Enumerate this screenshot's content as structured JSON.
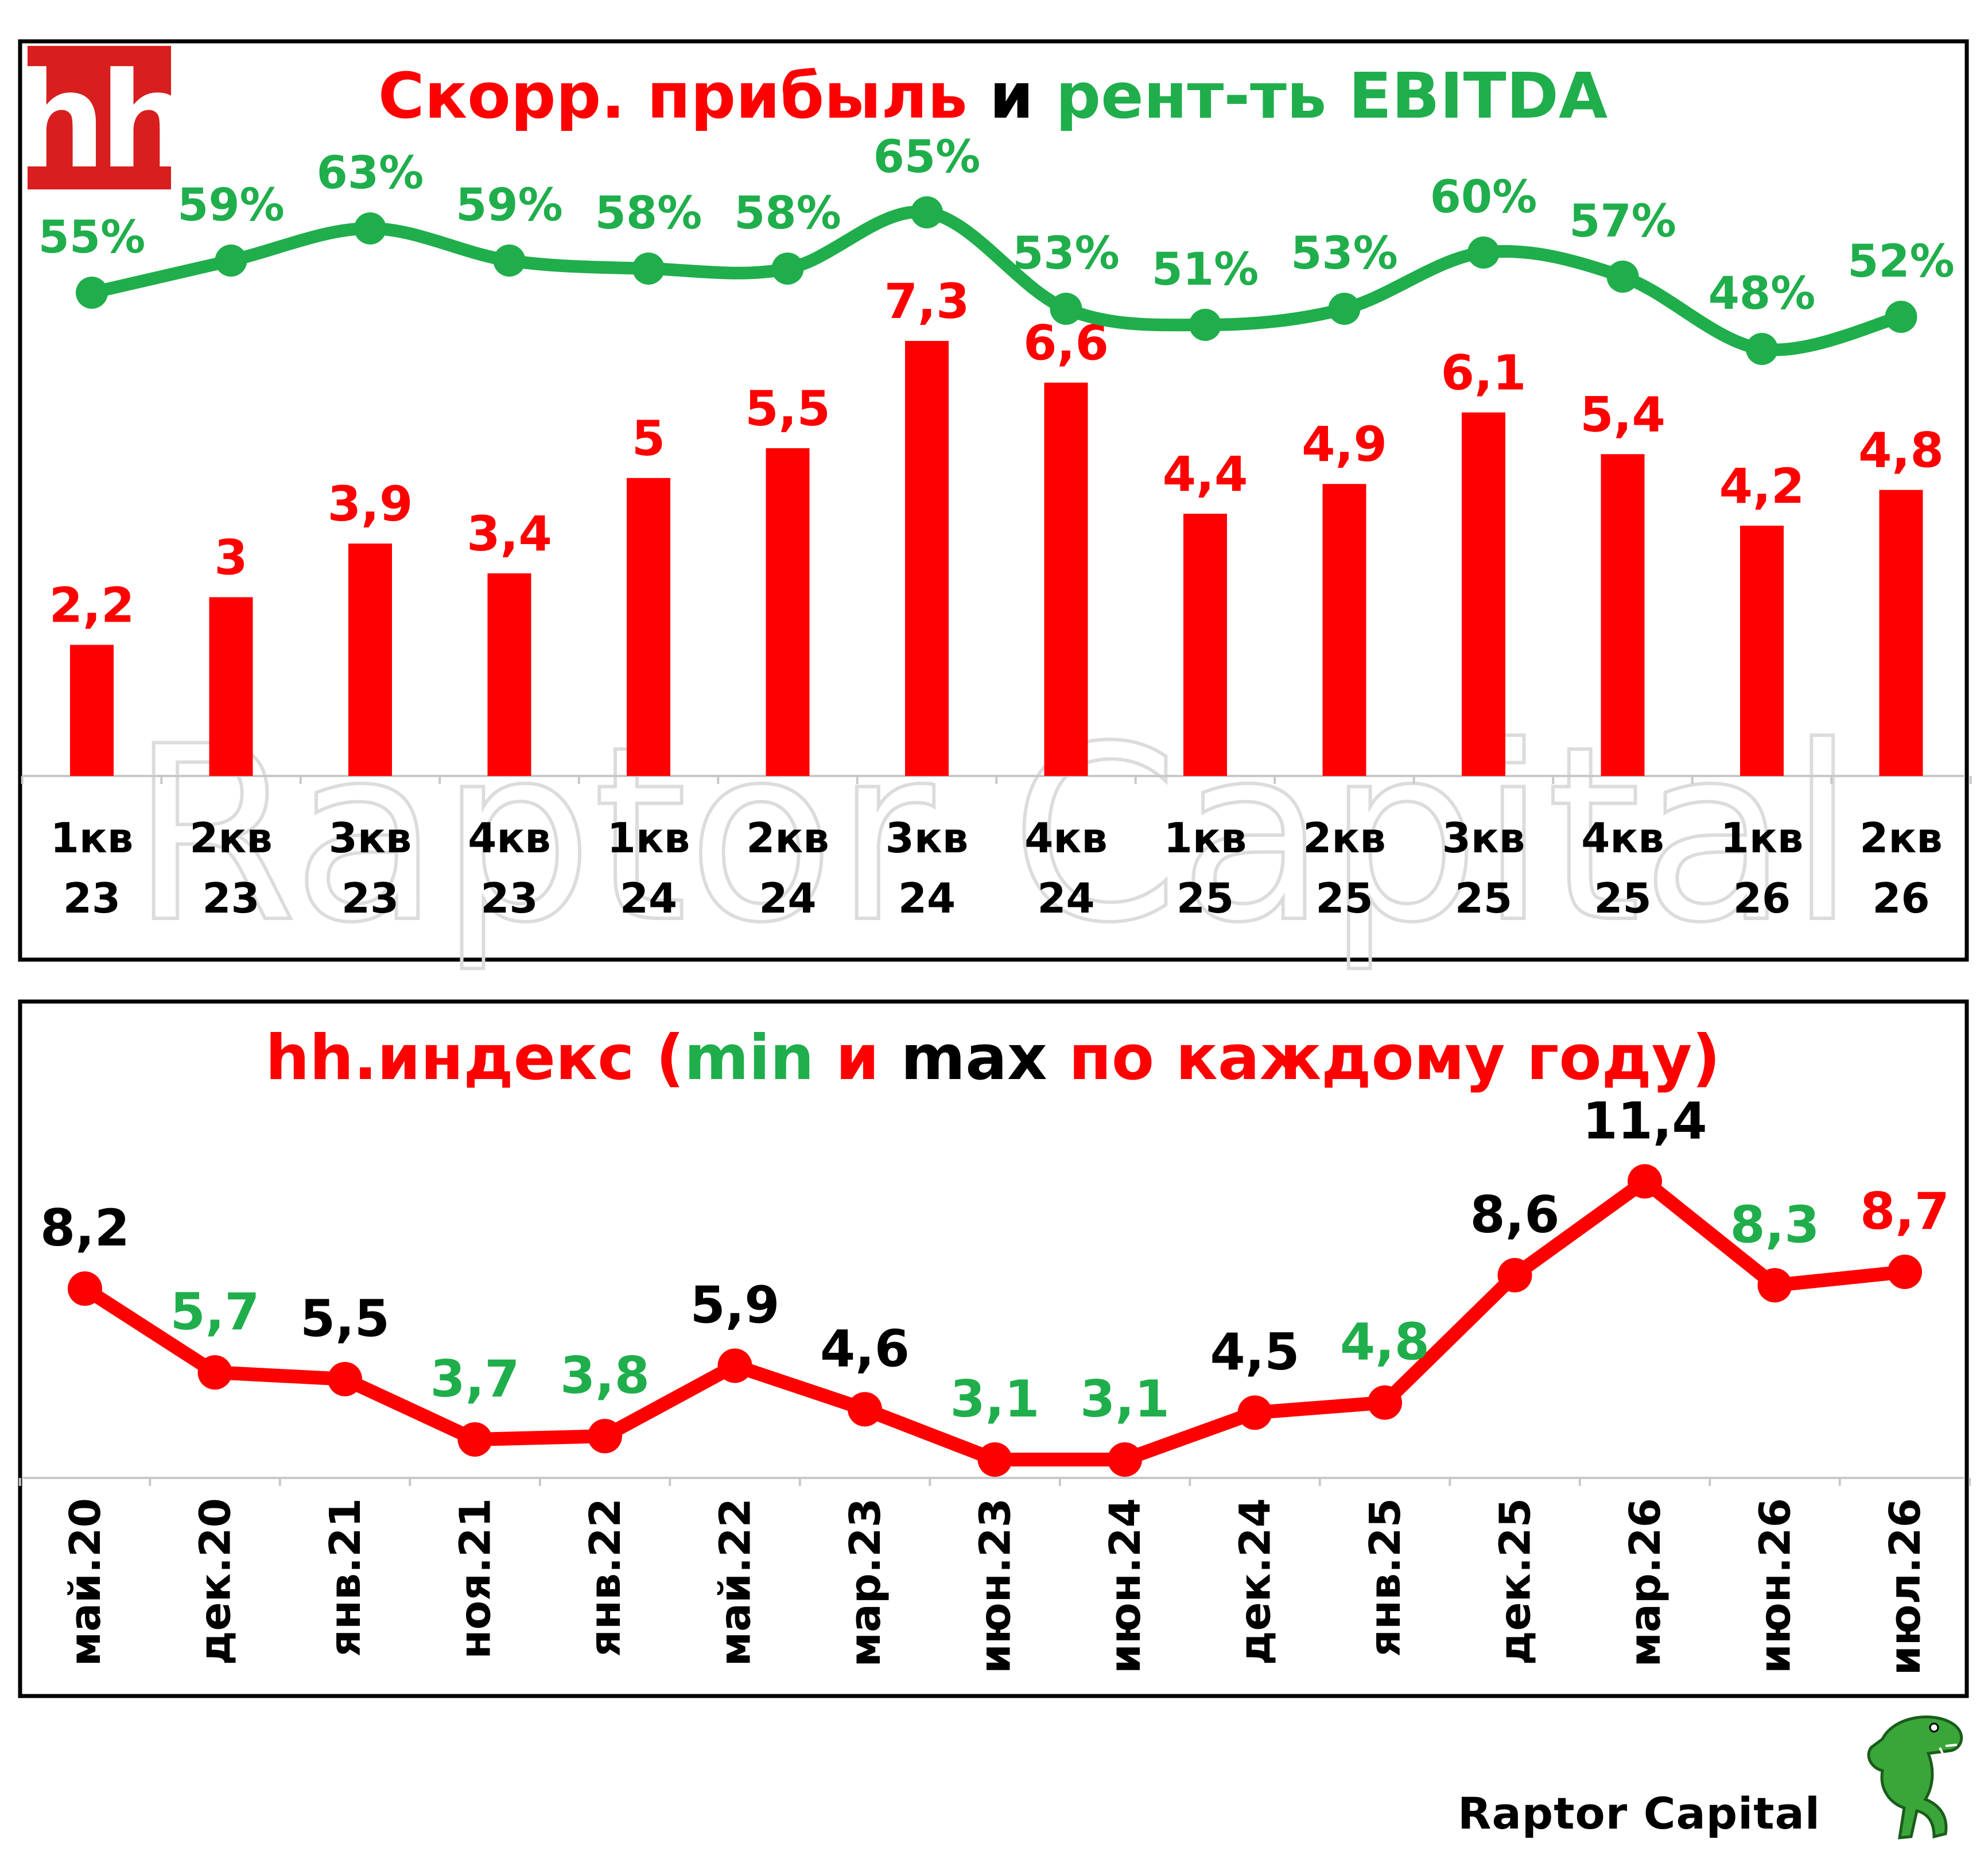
{
  "logo_text": "hh",
  "watermark": "Raptor Capital",
  "footer": {
    "brand": "Raptor Capital"
  },
  "colors": {
    "red": "#ff0000",
    "green": "#1fae4b",
    "black": "#000000"
  },
  "chart1": {
    "title_parts": [
      {
        "text": "Скорр. прибыль",
        "color": "red"
      },
      {
        "text": " и ",
        "color": "black"
      },
      {
        "text": "рент-ть EBITDA",
        "color": "green"
      }
    ]
  },
  "chart2": {
    "title_parts": [
      {
        "text": "hh.индекс (",
        "color": "red"
      },
      {
        "text": "min",
        "color": "green"
      },
      {
        "text": " и ",
        "color": "red"
      },
      {
        "text": "max",
        "color": "black"
      },
      {
        "text": " по каждому году)",
        "color": "red"
      }
    ]
  },
  "chart_data": [
    {
      "type": "bar",
      "title": "Скорр. прибыль и рент-ть EBITDA",
      "categories": [
        "1кв 23",
        "2кв 23",
        "3кв 23",
        "4кв 23",
        "1кв 24",
        "2кв 24",
        "3кв 24",
        "4кв 24",
        "1кв 25",
        "2кв 25",
        "3кв 25",
        "4кв 25",
        "1кв 26",
        "2кв 26"
      ],
      "category_lines": [
        [
          "1кв",
          "23"
        ],
        [
          "2кв",
          "23"
        ],
        [
          "3кв",
          "23"
        ],
        [
          "4кв",
          "23"
        ],
        [
          "1кв",
          "24"
        ],
        [
          "2кв",
          "24"
        ],
        [
          "3кв",
          "24"
        ],
        [
          "4кв",
          "24"
        ],
        [
          "1кв",
          "25"
        ],
        [
          "2кв",
          "25"
        ],
        [
          "3кв",
          "25"
        ],
        [
          "4кв",
          "25"
        ],
        [
          "1кв",
          "26"
        ],
        [
          "2кв",
          "26"
        ]
      ],
      "series": [
        {
          "name": "Скорр. прибыль",
          "type": "bar",
          "color": "#ff0000",
          "values": [
            2.2,
            3,
            3.9,
            3.4,
            5,
            5.5,
            7.3,
            6.6,
            4.4,
            4.9,
            6.1,
            5.4,
            4.2,
            4.8
          ],
          "labels": [
            "2,2",
            "3",
            "3,9",
            "3,4",
            "5",
            "5,5",
            "7,3",
            "6,6",
            "4,4",
            "4,9",
            "6,1",
            "5,4",
            "4,2",
            "4,8"
          ]
        },
        {
          "name": "рент-ть EBITDA",
          "type": "line",
          "color": "#1fae4b",
          "values": [
            55,
            59,
            63,
            59,
            58,
            58,
            65,
            53,
            51,
            53,
            60,
            57,
            48,
            52
          ],
          "labels": [
            "55%",
            "59%",
            "63%",
            "59%",
            "58%",
            "58%",
            "65%",
            "53%",
            "51%",
            "53%",
            "60%",
            "57%",
            "48%",
            "52%"
          ]
        }
      ],
      "ylim": [
        0,
        7.3
      ],
      "grid": false,
      "legend": "none"
    },
    {
      "type": "line",
      "title": "hh.индекс (min и max по каждому году)",
      "categories": [
        "май.20",
        "дек.20",
        "янв.21",
        "ноя.21",
        "янв.22",
        "май.22",
        "мар.23",
        "июн.23",
        "июн.24",
        "дек.24",
        "янв.25",
        "дек.25",
        "мар.26",
        "июн.26",
        "июл.26"
      ],
      "values": [
        8.2,
        5.7,
        5.5,
        3.7,
        3.8,
        5.9,
        4.6,
        3.1,
        3.1,
        4.5,
        4.8,
        8.6,
        11.4,
        8.3,
        8.7
      ],
      "labels": [
        "8,2",
        "5,7",
        "5,5",
        "3,7",
        "3,8",
        "5,9",
        "4,6",
        "3,1",
        "3,1",
        "4,5",
        "4,8",
        "8,6",
        "11,4",
        "8,3",
        "8,7"
      ],
      "label_colors": [
        "black",
        "green",
        "black",
        "green",
        "green",
        "black",
        "black",
        "green",
        "green",
        "black",
        "green",
        "black",
        "black",
        "green",
        "red"
      ],
      "line_color": "#ff0000",
      "grid": false,
      "legend": "none"
    }
  ]
}
